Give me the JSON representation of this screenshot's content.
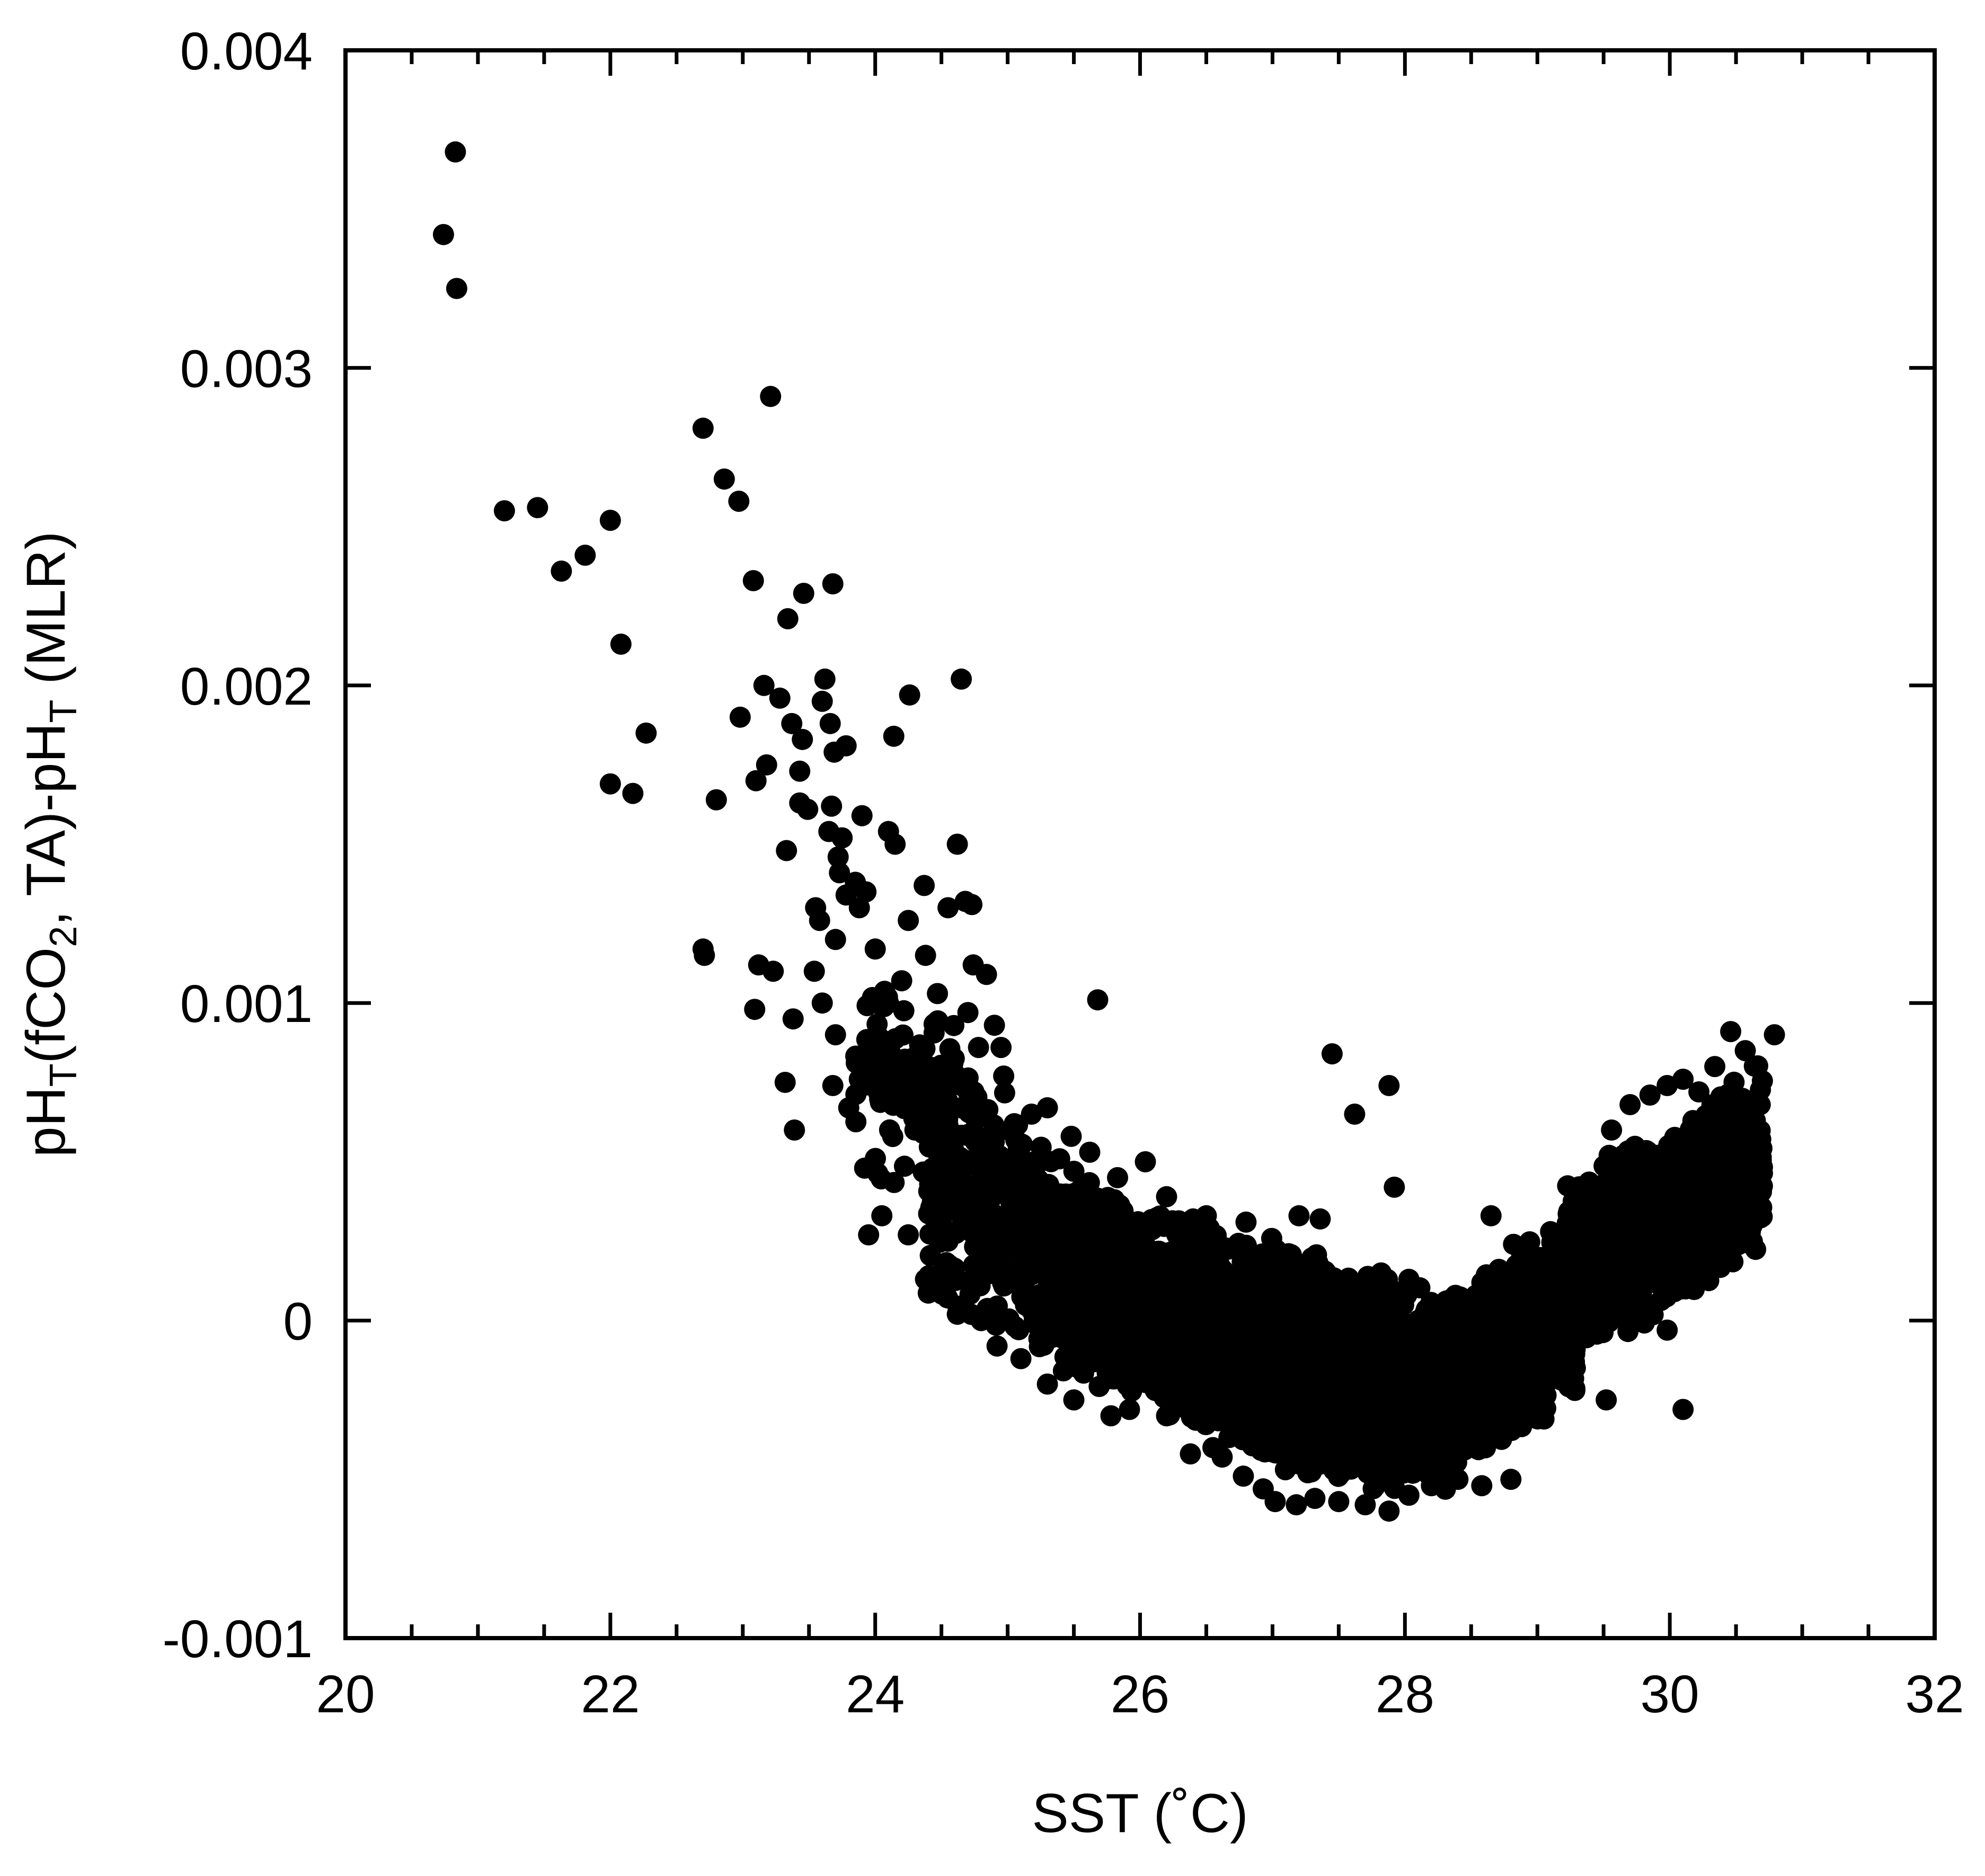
{
  "chart_data": {
    "type": "scatter",
    "title": "",
    "xlabel": "SST (˚C)",
    "ylabel": {
      "parts": [
        {
          "text": "pH",
          "kind": "normal"
        },
        {
          "text": "T",
          "kind": "sub"
        },
        {
          "text": "(fCO",
          "kind": "normal"
        },
        {
          "text": "2",
          "kind": "sub"
        },
        {
          "text": ", TA)-pH",
          "kind": "normal"
        },
        {
          "text": "T",
          "kind": "sub"
        },
        {
          "text": " (MLR)",
          "kind": "normal"
        }
      ]
    },
    "xlim": [
      20,
      32
    ],
    "ylim": [
      -0.001,
      0.004
    ],
    "x_ticks": [
      20,
      22,
      24,
      26,
      28,
      30,
      32
    ],
    "x_tick_labels": [
      "20",
      "22",
      "24",
      "26",
      "28",
      "30",
      "32"
    ],
    "x_minor_step": 0.5,
    "y_ticks": [
      -0.001,
      0,
      0.001,
      0.002,
      0.003,
      0.004
    ],
    "y_tick_labels": [
      "-0.001",
      "0",
      "0.001",
      "0.002",
      "0.003",
      "0.004"
    ],
    "grid": false,
    "legend": "none",
    "colors": {
      "marker": "#000000",
      "axes": "#000000",
      "background": "#ffffff"
    },
    "marker": "filled-circle",
    "series": [
      {
        "points": [
          [
            20.74,
            0.00342
          ],
          [
            20.83,
            0.00368
          ],
          [
            20.84,
            0.00325
          ],
          [
            21.2,
            0.00255
          ],
          [
            21.45,
            0.00256
          ],
          [
            21.63,
            0.00236
          ],
          [
            21.81,
            0.00241
          ],
          [
            22.0,
            0.00252
          ],
          [
            22.08,
            0.00213
          ],
          [
            22.0,
            0.00169
          ],
          [
            22.17,
            0.00166
          ],
          [
            22.27,
            0.00185
          ],
          [
            22.7,
            0.00281
          ],
          [
            22.86,
            0.00265
          ],
          [
            22.97,
            0.00258
          ],
          [
            22.7,
            0.00117
          ],
          [
            22.71,
            0.00115
          ],
          [
            22.8,
            0.00164
          ],
          [
            22.98,
            0.0019
          ],
          [
            23.08,
            0.00233
          ],
          [
            23.21,
            0.00291
          ],
          [
            23.16,
            0.002
          ],
          [
            23.1,
            0.0017
          ],
          [
            23.18,
            0.00175
          ],
          [
            23.28,
            0.00196
          ],
          [
            23.34,
            0.00221
          ],
          [
            23.46,
            0.00229
          ],
          [
            23.37,
            0.00188
          ],
          [
            23.45,
            0.00183
          ],
          [
            23.43,
            0.00173
          ],
          [
            23.43,
            0.00163
          ],
          [
            23.49,
            0.00161
          ],
          [
            23.33,
            0.00148
          ],
          [
            23.12,
            0.00112
          ],
          [
            23.23,
            0.0011
          ],
          [
            23.09,
            0.00098
          ],
          [
            23.32,
            0.00075
          ],
          [
            23.38,
            0.00095
          ],
          [
            23.39,
            0.0006
          ],
          [
            23.54,
            0.0011
          ],
          [
            23.55,
            0.0013
          ],
          [
            23.58,
            0.00126
          ],
          [
            23.62,
            0.00202
          ],
          [
            23.66,
            0.00188
          ],
          [
            23.68,
            0.00232
          ],
          [
            23.69,
            0.00179
          ],
          [
            23.78,
            0.00181
          ],
          [
            23.6,
            0.00195
          ],
          [
            23.65,
            0.00154
          ],
          [
            23.67,
            0.00162
          ],
          [
            23.72,
            0.00146
          ],
          [
            23.75,
            0.00152
          ],
          [
            23.7,
            0.0012
          ],
          [
            23.73,
            0.00141
          ],
          [
            23.78,
            0.00134
          ],
          [
            23.85,
            0.00138
          ],
          [
            23.88,
            0.0013
          ],
          [
            23.9,
            0.00159
          ],
          [
            23.93,
            0.00135
          ],
          [
            23.6,
            0.001
          ],
          [
            23.7,
            0.0009
          ],
          [
            23.68,
            0.00074
          ],
          [
            23.8,
            0.00067
          ],
          [
            23.88,
            0.00076
          ],
          [
            23.92,
            0.00048
          ],
          [
            23.95,
            0.00027
          ],
          [
            24.05,
            0.00033
          ],
          [
            24.1,
            0.00154
          ],
          [
            24.15,
            0.0015
          ],
          [
            24.14,
            0.00184
          ],
          [
            24.26,
            0.00197
          ],
          [
            24.37,
            0.00137
          ],
          [
            24.25,
            0.00126
          ],
          [
            24.38,
            0.00115
          ],
          [
            24.0,
            0.00117
          ],
          [
            24.1,
            0.001
          ],
          [
            24.2,
            0.00107
          ],
          [
            24.25,
            0.00027
          ],
          [
            24.3,
            0.0006
          ],
          [
            24.38,
            0.00013
          ],
          [
            24.55,
            0.0013
          ],
          [
            24.62,
            0.0015
          ],
          [
            24.65,
            0.00202
          ],
          [
            24.68,
            0.00132
          ],
          [
            24.73,
            0.00131
          ],
          [
            24.74,
            0.00112
          ],
          [
            24.84,
            0.00109
          ],
          [
            24.7,
            0.00097
          ],
          [
            24.78,
            0.00086
          ],
          [
            24.9,
            0.00093
          ],
          [
            24.95,
            0.00086
          ],
          [
            24.97,
            0.00077
          ],
          [
            25.05,
            0.00062
          ],
          [
            25.18,
            0.00065
          ],
          [
            25.3,
            0.00067
          ],
          [
            25.48,
            0.00058
          ],
          [
            25.68,
            0.00101
          ],
          [
            25.62,
            0.00053
          ],
          [
            25.83,
            0.00045
          ],
          [
            26.04,
            0.0005
          ],
          [
            26.2,
            0.00039
          ],
          [
            26.4,
            0.00032
          ],
          [
            26.5,
            0.00033
          ],
          [
            26.8,
            0.00031
          ],
          [
            27.2,
            0.00033
          ],
          [
            27.36,
            0.00032
          ],
          [
            27.45,
            0.00084
          ],
          [
            27.62,
            0.00065
          ],
          [
            27.88,
            0.00074
          ],
          [
            27.92,
            0.00042
          ],
          [
            27.82,
            0.00015
          ],
          [
            28.03,
            0.00013
          ],
          [
            28.65,
            0.00033
          ],
          [
            28.82,
            0.00024
          ],
          [
            29.1,
            0.00028
          ],
          [
            29.4,
            0.0004
          ],
          [
            29.56,
            0.0006
          ],
          [
            29.7,
            0.00068
          ],
          [
            29.85,
            0.00071
          ],
          [
            29.98,
            0.00074
          ],
          [
            30.1,
            0.00076
          ],
          [
            30.22,
            0.00072
          ],
          [
            30.34,
            0.0008
          ],
          [
            30.46,
            0.00091
          ],
          [
            30.57,
            0.00085
          ],
          [
            30.79,
            0.0009
          ],
          [
            30.63,
            0.00058
          ],
          [
            30.48,
            0.00045
          ],
          [
            30.55,
            0.0006
          ],
          [
            30.12,
            0.0001
          ],
          [
            29.98,
            -3e-05
          ],
          [
            30.1,
            -0.00028
          ],
          [
            29.52,
            -0.00025
          ],
          [
            29.05,
            -0.00031
          ],
          [
            28.8,
            -0.0005
          ],
          [
            28.58,
            -0.00052
          ],
          [
            28.4,
            -0.0005
          ],
          [
            28.2,
            -0.00052
          ],
          [
            28.03,
            -0.00055
          ],
          [
            27.88,
            -0.0006
          ],
          [
            27.7,
            -0.00058
          ],
          [
            27.5,
            -0.00057
          ],
          [
            27.32,
            -0.00056
          ],
          [
            27.18,
            -0.00058
          ],
          [
            27.02,
            -0.00057
          ],
          [
            26.93,
            -0.00053
          ],
          [
            26.78,
            -0.00049
          ],
          [
            26.62,
            -0.00043
          ],
          [
            26.55,
            -0.0004
          ],
          [
            26.38,
            -0.00042
          ],
          [
            26.2,
            -0.0003
          ],
          [
            25.92,
            -0.00028
          ],
          [
            25.78,
            -0.0003
          ],
          [
            25.5,
            -0.00025
          ],
          [
            25.3,
            -0.0002
          ],
          [
            25.1,
            -0.00012
          ],
          [
            24.92,
            -8e-05
          ],
          [
            24.8,
            0.0
          ],
          [
            24.62,
            2e-05
          ],
          [
            24.55,
            0.00025
          ],
          [
            24.45,
            0.00035
          ],
          [
            24.62,
            0.00045
          ]
        ],
        "bands": [
          {
            "x_from": 23.85,
            "x_to": 24.6,
            "y_lo": [
              0.0004,
              0.00025
            ],
            "y_hi": [
              0.0012,
              0.0011
            ],
            "count": 110
          },
          {
            "x_from": 24.4,
            "x_to": 25.6,
            "y_lo": [
              5e-05,
              -0.00022
            ],
            "y_hi": [
              0.001,
              0.00045
            ],
            "count": 420
          },
          {
            "x_from": 25.4,
            "x_to": 27.0,
            "y_lo": [
              -0.00018,
              -0.00045
            ],
            "y_hi": [
              0.00048,
              0.00025
            ],
            "count": 1200
          },
          {
            "x_from": 26.9,
            "x_to": 28.4,
            "y_lo": [
              -0.00052,
              -0.00055
            ],
            "y_hi": [
              0.00028,
              8e-05
            ],
            "count": 1600
          },
          {
            "x_from": 28.3,
            "x_to": 29.3,
            "y_lo": [
              -0.0005,
              -0.00025
            ],
            "y_hi": [
              0.0001,
              0.00035
            ],
            "count": 900
          },
          {
            "x_from": 29.2,
            "x_to": 30.7,
            "y_lo": [
              -0.00018,
              0.0002
            ],
            "y_hi": [
              0.00045,
              0.00082
            ],
            "count": 1100
          }
        ]
      }
    ]
  }
}
